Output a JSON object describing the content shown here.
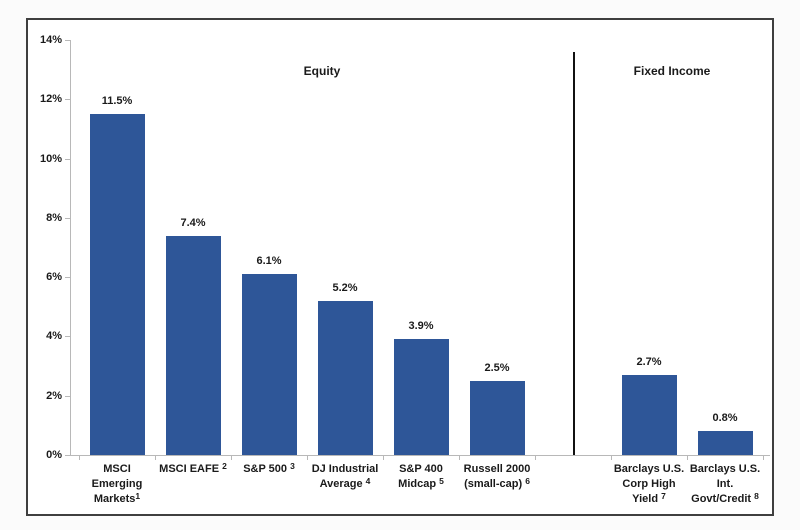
{
  "chart_data": {
    "type": "bar",
    "title": "",
    "xlabel": "",
    "ylabel": "",
    "ylim": [
      0,
      14
    ],
    "grid": false,
    "legend": "none",
    "bar_color": "#2e5698",
    "axis_color": "#b8b8b8",
    "ytick_values": [
      0,
      2,
      4,
      6,
      8,
      10,
      12,
      14
    ],
    "ytick_labels": [
      "0%",
      "2%",
      "4%",
      "6%",
      "8%",
      "10%",
      "12%",
      "14%"
    ],
    "categories": [
      "MSCI Emerging Markets 1",
      "MSCI EAFE 2",
      "S&P 500 3",
      "DJ Industrial Average 4",
      "S&P 400 Midcap 5",
      "Russell 2000 (small-cap) 6",
      "Barclays U.S. Corp High Yield 7",
      "Barclays U.S. Int. Govt/Credit 8"
    ],
    "values": [
      11.5,
      7.4,
      6.1,
      5.2,
      3.9,
      2.5,
      2.7,
      0.8
    ],
    "groups": [
      {
        "label": "Equity",
        "bars": [
          {
            "lines": [
              "MSCI",
              "Emerging",
              "Markets"
            ],
            "sup": "1",
            "sup_space": false,
            "value": 11.5,
            "value_label": "11.5%"
          },
          {
            "lines": [
              "MSCI EAFE"
            ],
            "sup": "2",
            "sup_space": true,
            "value": 7.4,
            "value_label": "7.4%"
          },
          {
            "lines": [
              "S&P 500"
            ],
            "sup": "3",
            "sup_space": true,
            "value": 6.1,
            "value_label": "6.1%"
          },
          {
            "lines": [
              "DJ Industrial",
              "Average"
            ],
            "sup": "4",
            "sup_space": true,
            "value": 5.2,
            "value_label": "5.2%"
          },
          {
            "lines": [
              "S&P 400",
              "Midcap"
            ],
            "sup": "5",
            "sup_space": true,
            "value": 3.9,
            "value_label": "3.9%"
          },
          {
            "lines": [
              "Russell 2000",
              "(small-cap)"
            ],
            "sup": "6",
            "sup_space": true,
            "value": 2.5,
            "value_label": "2.5%"
          }
        ]
      },
      {
        "label": "Fixed Income",
        "bars": [
          {
            "lines": [
              "Barclays U.S.",
              "Corp High",
              "Yield"
            ],
            "sup": "7",
            "sup_space": true,
            "value": 2.7,
            "value_label": "2.7%"
          },
          {
            "lines": [
              "Barclays U.S.",
              "Int.",
              "Govt/Credit"
            ],
            "sup": "8",
            "sup_space": true,
            "value": 0.8,
            "value_label": "0.8%"
          }
        ]
      }
    ]
  }
}
